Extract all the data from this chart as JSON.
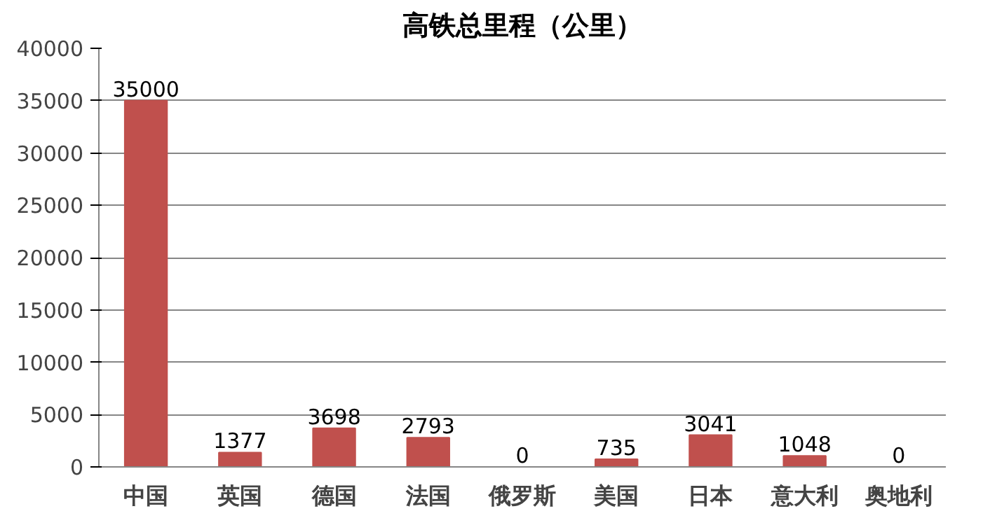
{
  "chart_data": {
    "type": "bar",
    "title": "高铁总里程（公里）",
    "categories": [
      "中国",
      "英国",
      "德国",
      "法国",
      "俄罗斯",
      "美国",
      "日本",
      "意大利",
      "奥地利"
    ],
    "values": [
      35000,
      1377,
      3698,
      2793,
      0,
      735,
      3041,
      1048,
      0
    ],
    "color": "#c0504d",
    "ylim": [
      0,
      40000
    ],
    "yticks": [
      0,
      5000,
      10000,
      15000,
      20000,
      25000,
      30000,
      35000,
      40000
    ],
    "grid": "y",
    "data_labels": true
  }
}
